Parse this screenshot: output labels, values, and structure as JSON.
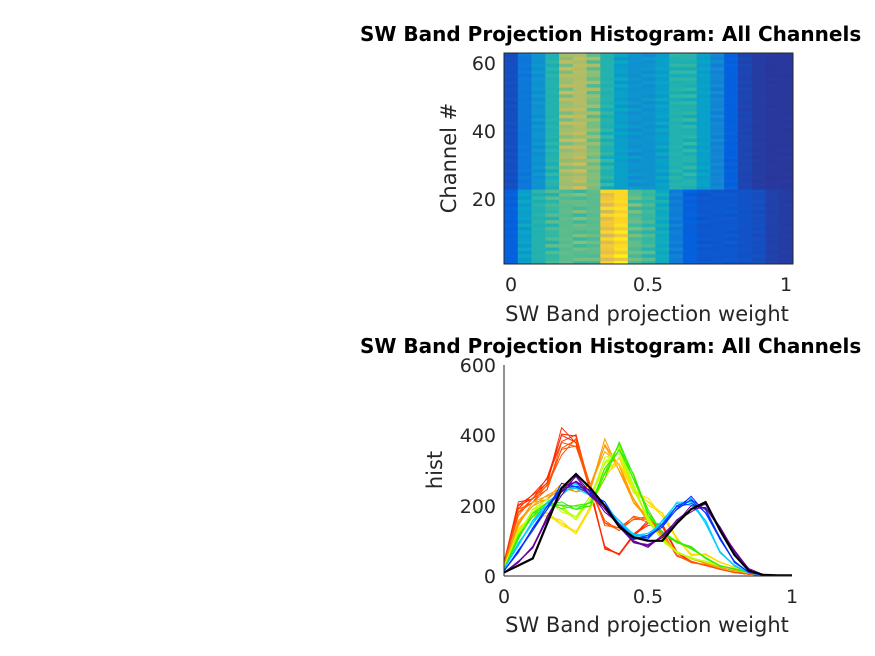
{
  "chart_data": [
    {
      "type": "heatmap",
      "title": "SW Band Projection Histogram: All Channels",
      "xlabel": "SW Band projection weight",
      "ylabel": "Channel #",
      "xlim": [
        -0.025,
        1.025
      ],
      "ylim": [
        0.5,
        62.5
      ],
      "xticks": [
        "0",
        "0.5",
        "1"
      ],
      "yticks": [
        "20",
        "40",
        "60"
      ],
      "colormap": "parula",
      "bin_centers": [
        0,
        0.05,
        0.1,
        0.15,
        0.2,
        0.25,
        0.3,
        0.35,
        0.4,
        0.45,
        0.5,
        0.55,
        0.6,
        0.65,
        0.7,
        0.75,
        0.8,
        0.85,
        0.9,
        0.95,
        1
      ],
      "channel_groups": [
        {
          "channels": [
            1,
            22
          ],
          "profile": [
            0.12,
            0.35,
            0.45,
            0.5,
            0.55,
            0.55,
            0.55,
            0.82,
            0.9,
            0.55,
            0.5,
            0.4,
            0.22,
            0.12,
            0.1,
            0.1,
            0.1,
            0.09,
            0.08,
            0.05,
            0.04
          ]
        },
        {
          "channels": [
            23,
            62
          ],
          "profile": [
            0.08,
            0.2,
            0.3,
            0.45,
            0.65,
            0.68,
            0.6,
            0.45,
            0.35,
            0.3,
            0.3,
            0.35,
            0.45,
            0.45,
            0.35,
            0.25,
            0.12,
            0.06,
            0.04,
            0.03,
            0.03
          ]
        }
      ]
    },
    {
      "type": "line",
      "title": "SW Band Projection Histogram: All Channels",
      "xlabel": "SW Band projection weight",
      "ylabel": "hist",
      "xlim": [
        0,
        1
      ],
      "ylim": [
        0,
        600
      ],
      "xticks": [
        "0",
        "0.5",
        "1"
      ],
      "yticks": [
        "0",
        "200",
        "400",
        "600"
      ],
      "x": [
        0,
        0.05,
        0.1,
        0.15,
        0.2,
        0.25,
        0.3,
        0.35,
        0.4,
        0.45,
        0.5,
        0.55,
        0.6,
        0.65,
        0.7,
        0.75,
        0.8,
        0.85,
        0.9,
        0.95,
        1
      ],
      "series": [
        {
          "name": "red",
          "color": "#ff2a00",
          "values": [
            40,
            200,
            220,
            280,
            400,
            380,
            250,
            80,
            60,
            120,
            150,
            140,
            70,
            40,
            30,
            20,
            10,
            5,
            2,
            2,
            2
          ]
        },
        {
          "name": "orange-red",
          "color": "#ff5500",
          "values": [
            35,
            180,
            210,
            260,
            360,
            370,
            260,
            150,
            130,
            170,
            160,
            120,
            60,
            40,
            30,
            20,
            10,
            5,
            2,
            2,
            2
          ]
        },
        {
          "name": "orange",
          "color": "#ff9900",
          "values": [
            30,
            150,
            200,
            230,
            250,
            240,
            260,
            370,
            300,
            220,
            160,
            110,
            70,
            50,
            35,
            25,
            15,
            8,
            3,
            2,
            2
          ]
        },
        {
          "name": "yellow",
          "color": "#ffdd00",
          "values": [
            25,
            130,
            170,
            180,
            150,
            120,
            200,
            290,
            320,
            250,
            210,
            170,
            110,
            60,
            60,
            40,
            25,
            10,
            3,
            2,
            2
          ]
        },
        {
          "name": "yellow-green",
          "color": "#bbff00",
          "values": [
            25,
            120,
            180,
            220,
            190,
            160,
            230,
            320,
            350,
            260,
            160,
            100,
            70,
            50,
            40,
            30,
            20,
            8,
            3,
            2,
            2
          ]
        },
        {
          "name": "green",
          "color": "#33ee00",
          "values": [
            20,
            110,
            170,
            210,
            200,
            190,
            210,
            290,
            360,
            290,
            180,
            120,
            100,
            80,
            50,
            30,
            20,
            10,
            3,
            2,
            2
          ]
        },
        {
          "name": "cyan",
          "color": "#00ccff",
          "values": [
            20,
            90,
            150,
            210,
            240,
            250,
            240,
            200,
            150,
            120,
            115,
            150,
            210,
            210,
            150,
            70,
            30,
            8,
            2,
            2,
            2
          ]
        },
        {
          "name": "blue",
          "color": "#0033ff",
          "values": [
            15,
            70,
            130,
            200,
            250,
            255,
            245,
            200,
            140,
            110,
            110,
            140,
            200,
            215,
            180,
            110,
            40,
            10,
            3,
            2,
            2
          ]
        },
        {
          "name": "purple",
          "color": "#66009a",
          "values": [
            10,
            40,
            80,
            170,
            240,
            270,
            240,
            190,
            140,
            100,
            85,
            110,
            160,
            190,
            195,
            140,
            70,
            20,
            4,
            2,
            2
          ]
        },
        {
          "name": "black",
          "color": "#000000",
          "values": [
            10,
            30,
            50,
            150,
            250,
            290,
            250,
            200,
            140,
            110,
            100,
            100,
            150,
            190,
            210,
            130,
            60,
            15,
            3,
            2,
            2
          ]
        }
      ]
    }
  ]
}
